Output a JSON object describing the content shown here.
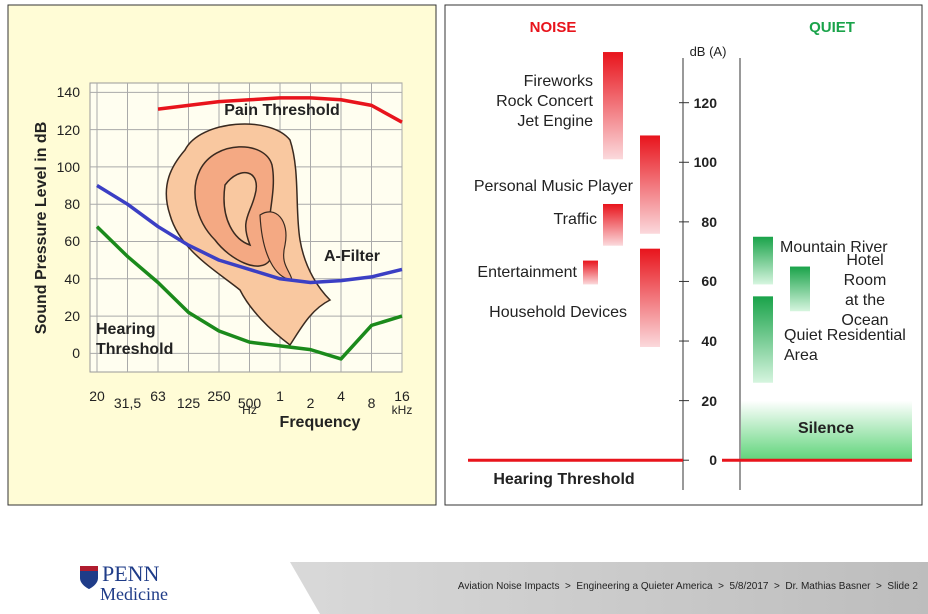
{
  "chart_data": [
    {
      "type": "line",
      "x_label": "Frequency",
      "y_label": "Sound Pressure Level in dB",
      "categories": [
        "20",
        "31,5",
        "63",
        "125",
        "250",
        "500",
        "1",
        "2",
        "4",
        "8",
        "16"
      ],
      "x_units": [
        "Hz",
        "kHz"
      ],
      "ylim": [
        -10,
        145
      ],
      "yticks": [
        0,
        20,
        40,
        60,
        80,
        100,
        120,
        140
      ],
      "grid": true,
      "series": [
        {
          "name": "Pain Threshold",
          "color": "#e8141c",
          "values": [
            null,
            null,
            131,
            133,
            135,
            136,
            137,
            137,
            136,
            133,
            124
          ]
        },
        {
          "name": "A-Filter",
          "color": "#3b3fc4",
          "values": [
            90,
            80,
            68,
            58,
            50,
            45,
            40,
            38,
            39,
            41,
            45
          ]
        },
        {
          "name": "Hearing Threshold",
          "color": "#1b8a1b",
          "values": [
            68,
            52,
            38,
            22,
            12,
            6,
            4,
            2,
            -3,
            15,
            20
          ]
        }
      ]
    },
    {
      "type": "range",
      "y_label": "dB (A)",
      "ylim": [
        -10,
        135
      ],
      "yticks": [
        0,
        20,
        40,
        60,
        80,
        100,
        120
      ],
      "threshold": {
        "name": "Hearing Threshold",
        "value": 0
      },
      "series": [
        {
          "name": "NOISE",
          "color": "#e8141c",
          "categories": [
            "Fireworks\nRock Concert\nJet Engine",
            "Personal Music Player",
            "Traffic",
            "Entertainment",
            "Household Devices"
          ],
          "low": [
            101,
            76,
            72,
            59,
            38
          ],
          "high": [
            137,
            109,
            86,
            67,
            71
          ]
        },
        {
          "name": "QUIET",
          "color": "#1aa34a",
          "categories": [
            "Mountain River",
            "Hotel Room\nat the Ocean",
            "Quiet Residential\nArea",
            "Silence"
          ],
          "low": [
            59,
            50,
            26,
            0
          ],
          "high": [
            75,
            65,
            55,
            20
          ]
        }
      ]
    }
  ],
  "footer": {
    "logo": [
      "PENN",
      "Medicine"
    ],
    "breadcrumb": "Aviation Noise Impacts  >  Engineering a Quieter America  >  5/8/2017  >  Dr. Mathias Basner  >  Slide 2"
  }
}
